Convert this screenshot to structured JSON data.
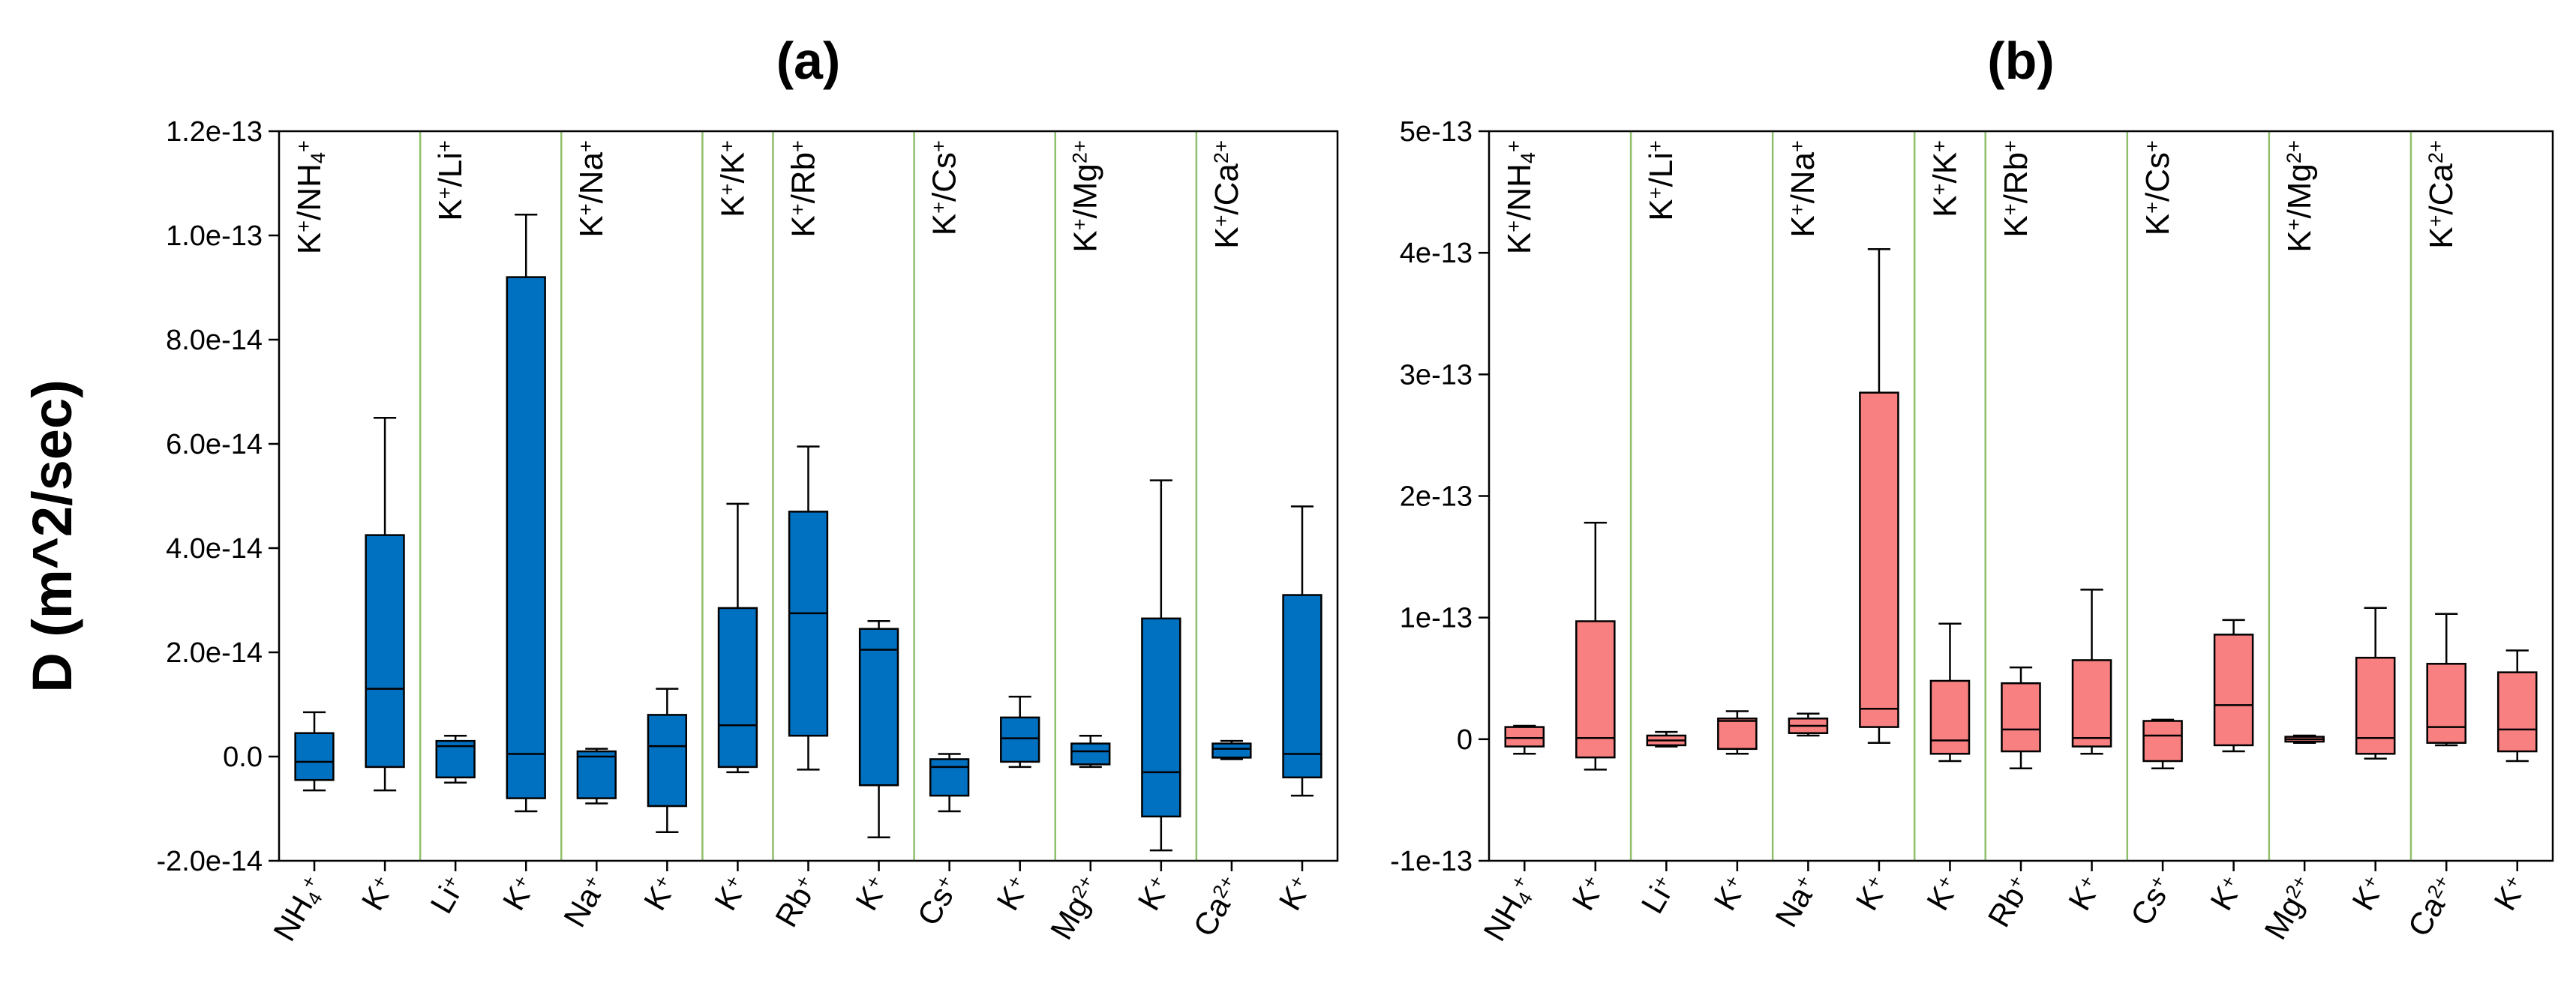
{
  "figure": {
    "ylabel": "D (m^2/sec)"
  },
  "chart_data": [
    {
      "type": "box",
      "title": "(a)",
      "ylabel": "D (m^2/sec)",
      "ylim": [
        -2e-14,
        1.2e-13
      ],
      "ytick_values": [
        -2e-14,
        0,
        2e-14,
        4e-14,
        6e-14,
        8e-14,
        1e-13,
        1.2e-13
      ],
      "ytick_labels": [
        "-2.0e-14",
        "0.0",
        "2.0e-14",
        "4.0e-14",
        "6.0e-14",
        "8.0e-14",
        "1.0e-13",
        "1.2e-13"
      ],
      "color": "#0070c0",
      "group_labels": [
        {
          "base": "K",
          "sup": "+",
          "rest": [
            {
              "t": "/NH"
            },
            {
              "sub": "4"
            },
            {
              "sup": "+"
            }
          ]
        },
        {
          "base": "K",
          "sup": "+",
          "rest": [
            {
              "t": "/Li"
            },
            {
              "sup": "+"
            }
          ]
        },
        {
          "base": "K",
          "sup": "+",
          "rest": [
            {
              "t": "/Na"
            },
            {
              "sup": "+"
            }
          ]
        },
        {
          "base": "K",
          "sup": "+",
          "rest": [
            {
              "t": "/K"
            },
            {
              "sup": "+"
            }
          ]
        },
        {
          "base": "K",
          "sup": "+",
          "rest": [
            {
              "t": "/Rb"
            },
            {
              "sup": "+"
            }
          ]
        },
        {
          "base": "K",
          "sup": "+",
          "rest": [
            {
              "t": "/Cs"
            },
            {
              "sup": "+"
            }
          ]
        },
        {
          "base": "K",
          "sup": "+",
          "rest": [
            {
              "t": "/Mg"
            },
            {
              "sup": "2+"
            }
          ]
        },
        {
          "base": "K",
          "sup": "+",
          "rest": [
            {
              "t": "/Ca"
            },
            {
              "sup": "2+"
            }
          ]
        }
      ],
      "category_labels": [
        "NH4+",
        "K+",
        "Li+",
        "K+",
        "Na+",
        "K+",
        "K+",
        "Rb+",
        "K+",
        "Cs+",
        "K+",
        "Mg2+",
        "K+",
        "Ca2+",
        "K+"
      ],
      "boxes": [
        {
          "label": "NH4+",
          "min": -6.5e-15,
          "q1": -4.5e-15,
          "median": -1e-15,
          "q3": 4.5e-15,
          "max": 8.5e-15
        },
        {
          "label": "K+",
          "min": -6.5e-15,
          "q1": -2e-15,
          "median": 1.3e-14,
          "q3": 4.25e-14,
          "max": 6.5e-14
        },
        {
          "label": "Li+",
          "min": -5e-15,
          "q1": -4e-15,
          "median": 2e-15,
          "q3": 3e-15,
          "max": 4e-15
        },
        {
          "label": "K+",
          "min": -1.05e-14,
          "q1": -8e-15,
          "median": 5e-16,
          "q3": 9.2e-14,
          "max": 1.04e-13
        },
        {
          "label": "Na+",
          "min": -9e-15,
          "q1": -8e-15,
          "median": 0,
          "q3": 1e-15,
          "max": 1.5e-15
        },
        {
          "label": "K+",
          "min": -1.45e-14,
          "q1": -9.5e-15,
          "median": 2e-15,
          "q3": 8e-15,
          "max": 1.3e-14
        },
        {
          "label": "K+",
          "min": -3e-15,
          "q1": -2e-15,
          "median": 6e-15,
          "q3": 2.85e-14,
          "max": 4.85e-14
        },
        {
          "label": "Rb+",
          "min": -2.5e-15,
          "q1": 4e-15,
          "median": 2.75e-14,
          "q3": 4.7e-14,
          "max": 5.95e-14
        },
        {
          "label": "K+",
          "min": -1.55e-14,
          "q1": -5.5e-15,
          "median": 2.05e-14,
          "q3": 2.45e-14,
          "max": 2.6e-14
        },
        {
          "label": "Cs+",
          "min": -1.05e-14,
          "q1": -7.5e-15,
          "median": -2e-15,
          "q3": -5e-16,
          "max": 5e-16
        },
        {
          "label": "K+",
          "min": -2e-15,
          "q1": -1e-15,
          "median": 3.5e-15,
          "q3": 7.5e-15,
          "max": 1.15e-14
        },
        {
          "label": "Mg2+",
          "min": -2e-15,
          "q1": -1.5e-15,
          "median": 1e-15,
          "q3": 2.5e-15,
          "max": 4e-15
        },
        {
          "label": "K+",
          "min": -1.8e-14,
          "q1": -1.15e-14,
          "median": -3e-15,
          "q3": 2.65e-14,
          "max": 5.3e-14
        },
        {
          "label": "Ca2+",
          "min": -5e-16,
          "q1": -2e-16,
          "median": 1.5e-15,
          "q3": 2.5e-15,
          "max": 3e-15
        },
        {
          "label": "K+",
          "min": -7.5e-15,
          "q1": -4e-15,
          "median": 5e-16,
          "q3": 3.1e-14,
          "max": 4.8e-14
        }
      ]
    },
    {
      "type": "box",
      "title": "(b)",
      "ylabel": "",
      "ylim": [
        -1e-13,
        5e-13
      ],
      "ytick_values": [
        -1e-13,
        0,
        1e-13,
        2e-13,
        3e-13,
        4e-13,
        5e-13
      ],
      "ytick_labels": [
        "-1e-13",
        "0",
        "1e-13",
        "2e-13",
        "3e-13",
        "4e-13",
        "5e-13"
      ],
      "color": "#f98080",
      "group_labels": [
        {
          "base": "K",
          "sup": "+",
          "rest": [
            {
              "t": "/NH"
            },
            {
              "sub": "4"
            },
            {
              "sup": "+"
            }
          ]
        },
        {
          "base": "K",
          "sup": "+",
          "rest": [
            {
              "t": "/Li"
            },
            {
              "sup": "+"
            }
          ]
        },
        {
          "base": "K",
          "sup": "+",
          "rest": [
            {
              "t": "/Na"
            },
            {
              "sup": "+"
            }
          ]
        },
        {
          "base": "K",
          "sup": "+",
          "rest": [
            {
              "t": "/K"
            },
            {
              "sup": "+"
            }
          ]
        },
        {
          "base": "K",
          "sup": "+",
          "rest": [
            {
              "t": "/Rb"
            },
            {
              "sup": "+"
            }
          ]
        },
        {
          "base": "K",
          "sup": "+",
          "rest": [
            {
              "t": "/Cs"
            },
            {
              "sup": "+"
            }
          ]
        },
        {
          "base": "K",
          "sup": "+",
          "rest": [
            {
              "t": "/Mg"
            },
            {
              "sup": "2+"
            }
          ]
        },
        {
          "base": "K",
          "sup": "+",
          "rest": [
            {
              "t": "/Ca"
            },
            {
              "sup": "2+"
            }
          ]
        }
      ],
      "category_labels": [
        "NH4+",
        "K+",
        "Li+",
        "K+",
        "Na+",
        "K+",
        "K+",
        "Rb+",
        "K+",
        "Cs+",
        "K+",
        "Mg2+",
        "K+",
        "Ca2+",
        "K+"
      ],
      "boxes": [
        {
          "label": "NH4+",
          "min": -1.2e-14,
          "q1": -6e-15,
          "median": 1e-15,
          "q3": 1e-14,
          "max": 1.1e-14
        },
        {
          "label": "K+",
          "min": -2.5e-14,
          "q1": -1.5e-14,
          "median": 1e-15,
          "q3": 9.7e-14,
          "max": 1.78e-13
        },
        {
          "label": "Li+",
          "min": -6e-15,
          "q1": -5e-15,
          "median": -1e-15,
          "q3": 3e-15,
          "max": 6e-15
        },
        {
          "label": "K+",
          "min": -1.2e-14,
          "q1": -8e-15,
          "median": 1.5e-14,
          "q3": 1.7e-14,
          "max": 2.3e-14
        },
        {
          "label": "Na+",
          "min": 3e-15,
          "q1": 5e-15,
          "median": 1.1e-14,
          "q3": 1.7e-14,
          "max": 2.1e-14
        },
        {
          "label": "K+",
          "min": -3e-15,
          "q1": 1e-14,
          "median": 2.5e-14,
          "q3": 2.85e-13,
          "max": 4.03e-13
        },
        {
          "label": "K+",
          "min": -1.8e-14,
          "q1": -1.2e-14,
          "median": -1e-15,
          "q3": 4.8e-14,
          "max": 9.5e-14
        },
        {
          "label": "Rb+",
          "min": -2.4e-14,
          "q1": -1e-14,
          "median": 8e-15,
          "q3": 4.6e-14,
          "max": 5.9e-14
        },
        {
          "label": "K+",
          "min": -1.2e-14,
          "q1": -6e-15,
          "median": 1e-15,
          "q3": 6.5e-14,
          "max": 1.23e-13
        },
        {
          "label": "Cs+",
          "min": -2.4e-14,
          "q1": -1.8e-14,
          "median": 3e-15,
          "q3": 1.5e-14,
          "max": 1.6e-14
        },
        {
          "label": "K+",
          "min": -1e-14,
          "q1": -5e-15,
          "median": 2.8e-14,
          "q3": 8.6e-14,
          "max": 9.8e-14
        },
        {
          "label": "Mg2+",
          "min": -3e-15,
          "q1": -2e-15,
          "median": 0,
          "q3": 2e-15,
          "max": 3e-15
        },
        {
          "label": "K+",
          "min": -1.6e-14,
          "q1": -1.2e-14,
          "median": 1e-15,
          "q3": 6.7e-14,
          "max": 1.08e-13
        },
        {
          "label": "Ca2+",
          "min": -5e-15,
          "q1": -3e-15,
          "median": 1e-14,
          "q3": 6.2e-14,
          "max": 1.03e-13
        },
        {
          "label": "K+",
          "min": -1.8e-14,
          "q1": -1e-14,
          "median": 8e-15,
          "q3": 5.5e-14,
          "max": 7.3e-14
        }
      ]
    }
  ]
}
